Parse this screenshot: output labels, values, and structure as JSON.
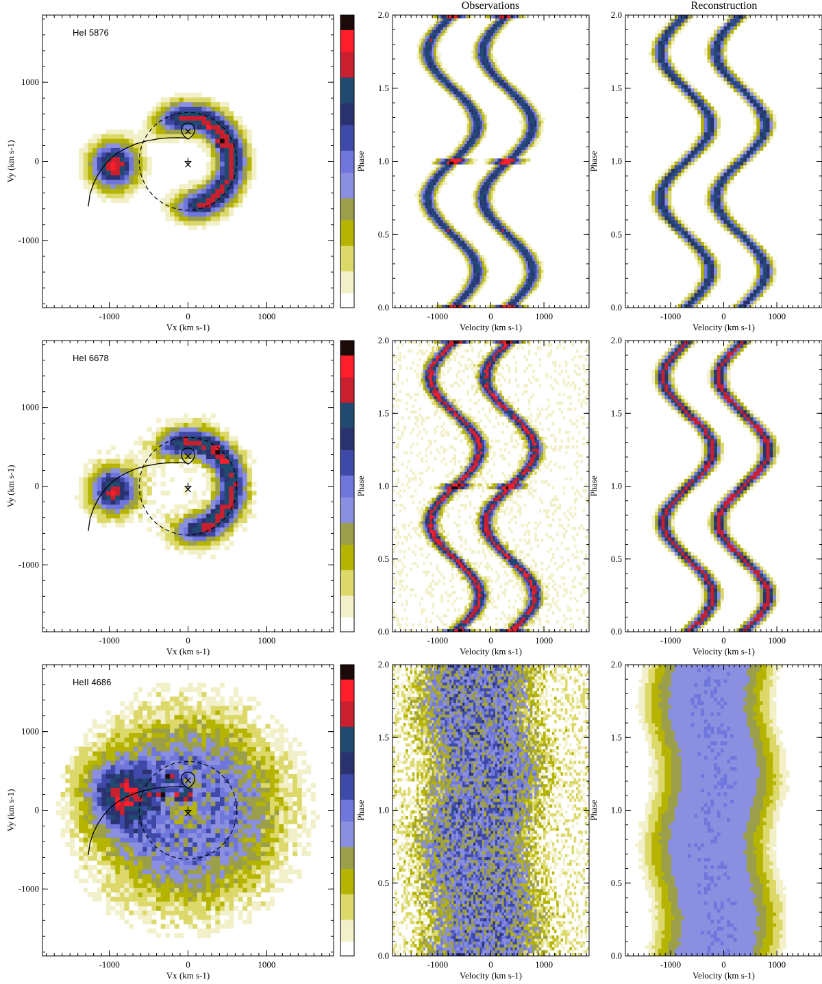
{
  "chart_data": {
    "type": "heatmap",
    "column_titles": {
      "observations": "Observations",
      "reconstruction": "Reconstruction"
    },
    "colormap": [
      "#ffffff",
      "#f2f0c8",
      "#dcd96a",
      "#b5b400",
      "#9c9f4a",
      "#8a8fe0",
      "#6f76dc",
      "#3f4aa8",
      "#2a3370",
      "#204a70",
      "#c8202e",
      "#ff1e2a",
      "#1a0a0a"
    ],
    "tomogram_axes": {
      "xlabel": "Vx",
      "ylabel": "Vy",
      "units": "(km s-1)",
      "xlim": [
        -1850,
        1850
      ],
      "ylim": [
        -1850,
        1850
      ],
      "ticks": [
        -1000,
        0,
        1000
      ],
      "tick_labels": [
        "-1000",
        "0",
        "1000"
      ]
    },
    "trail_axes": {
      "xlabel": "Velocity",
      "units": "(km s-1)",
      "ylabel": "Phase",
      "xlim": [
        -1850,
        1850
      ],
      "ylim": [
        0.0,
        2.0
      ],
      "xticks": [
        -1000,
        0,
        1000
      ],
      "xtick_labels": [
        "-1000",
        "0",
        "1000"
      ],
      "yticks": [
        0.0,
        0.5,
        1.0,
        1.5,
        2.0
      ],
      "ytick_labels": [
        "0.0",
        "0.5",
        "1.0",
        "1.5",
        "2.0"
      ]
    },
    "overlays": {
      "roche_lobe_center": [
        0,
        380
      ],
      "roche_lobe_radius": 95,
      "secondary_marker": [
        0,
        380
      ],
      "primary_markers": [
        [
          0,
          0
        ],
        [
          0,
          -40
        ]
      ],
      "disc_circle_center": [
        0,
        0
      ],
      "disc_circle_radius": 620,
      "stream_path": [
        [
          -10,
          295
        ],
        [
          -120,
          300
        ],
        [
          -250,
          298
        ],
        [
          -380,
          285
        ],
        [
          -520,
          260
        ],
        [
          -660,
          222
        ],
        [
          -780,
          170
        ],
        [
          -890,
          110
        ],
        [
          -990,
          30
        ],
        [
          -1070,
          -60
        ],
        [
          -1140,
          -160
        ],
        [
          -1200,
          -280
        ],
        [
          -1245,
          -410
        ],
        [
          -1268,
          -570
        ]
      ]
    },
    "series": [
      {
        "name": "HeI 5876",
        "ring": {
          "radius": 560,
          "width": 190,
          "arc_start_deg": -70,
          "arc_end_deg": 95,
          "peak": 0.82
        },
        "hotspots": [
          [
            250,
            450,
            1.0
          ],
          [
            420,
            250,
            1.0
          ],
          [
            500,
            180,
            0.9
          ],
          [
            320,
            -530,
            0.7
          ]
        ],
        "outer_arc": {
          "center": [
            -940,
            -50
          ],
          "size": 200,
          "peak": 0.65
        },
        "noise": 0.06,
        "trail": {
          "gamma": -200,
          "k": 470,
          "width": 130,
          "peak": 0.75,
          "eclipse": 0.95
        }
      },
      {
        "name": "HeI 6678",
        "ring": {
          "radius": 560,
          "width": 190,
          "arc_start_deg": -70,
          "arc_end_deg": 95,
          "peak": 0.8
        },
        "hotspots": [
          [
            380,
            460,
            1.0
          ],
          [
            460,
            300,
            0.95
          ],
          [
            360,
            -340,
            0.85
          ],
          [
            -1000,
            80,
            0.65
          ]
        ],
        "outer_arc": {
          "center": [
            -940,
            -50
          ],
          "size": 200,
          "peak": 0.6
        },
        "noise": 0.18,
        "trail": {
          "gamma": -150,
          "k": 470,
          "width": 130,
          "peak": 0.85,
          "eclipse": 0.95
        }
      },
      {
        "name": "HeII 4686",
        "ring": {
          "radius": 500,
          "width": 700,
          "arc_start_deg": 0,
          "arc_end_deg": 360,
          "peak": 0.45
        },
        "hotspots": [
          [
            -240,
            420,
            1.0
          ],
          [
            -320,
            200,
            0.9
          ],
          [
            -120,
            180,
            0.85
          ],
          [
            0,
            200,
            0.95
          ]
        ],
        "outer_arc": {
          "center": [
            -900,
            200
          ],
          "size": 300,
          "peak": 0.35
        },
        "noise": 0.35,
        "trail": {
          "gamma": -200,
          "k": 120,
          "width": 1100,
          "peak": 0.45,
          "eclipse": 0.55
        }
      }
    ]
  }
}
